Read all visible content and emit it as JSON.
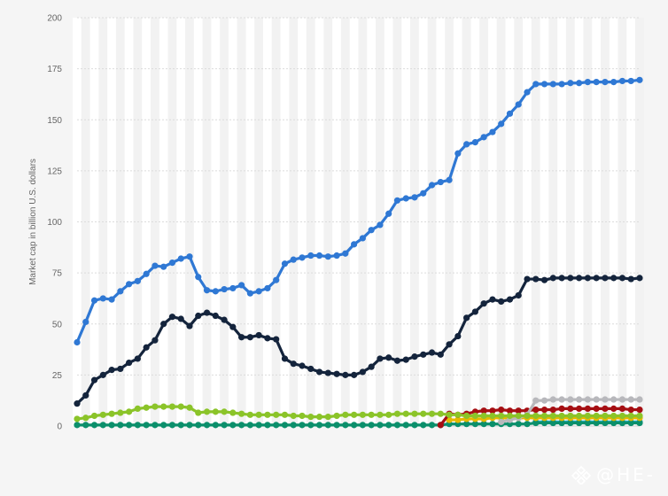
{
  "chart_data": {
    "type": "line",
    "title": "",
    "xlabel": "",
    "ylabel": "Market cap in billion U.S. dollars",
    "ylim": [
      0,
      200
    ],
    "yticks": [
      0,
      25,
      50,
      75,
      100,
      125,
      150,
      175,
      200
    ],
    "grid": true,
    "legend": "none",
    "series": [
      {
        "color": "#2f78d4",
        "values": [
          41,
          51,
          61.5,
          62.5,
          62,
          66,
          69.5,
          71,
          74.5,
          78.5,
          78,
          80,
          82,
          83,
          73,
          66.5,
          66,
          67,
          67.5,
          69,
          65,
          66,
          67.5,
          71.5,
          79.5,
          81.5,
          82.5,
          83.5,
          83.5,
          83,
          83.5,
          84.5,
          89,
          92,
          96,
          98.5,
          104,
          110.5,
          111.5,
          112,
          114,
          118,
          119.5,
          120.5,
          133.5,
          138,
          139,
          141.5,
          144,
          148,
          153,
          157.5,
          163.5,
          167.5,
          167.5,
          167.5,
          167.5,
          168,
          168,
          168.5,
          168.5,
          168.5,
          168.5,
          169,
          169,
          169.5
        ]
      },
      {
        "color": "#14243c",
        "values": [
          11,
          15,
          22.5,
          25,
          27.5,
          28,
          31,
          33,
          38.5,
          42,
          50,
          53.5,
          52.5,
          49,
          54,
          55.5,
          54,
          52,
          48.5,
          43.5,
          43.5,
          44.5,
          43,
          42.5,
          33,
          30.5,
          29.5,
          28,
          26.5,
          26,
          25.5,
          25,
          25,
          26.5,
          29,
          33,
          33.5,
          32,
          32.5,
          34,
          35,
          36,
          35,
          40,
          44,
          53,
          56,
          60,
          62,
          61,
          62,
          64,
          72,
          72,
          71.5,
          72.5,
          72.5,
          72.5,
          72.5,
          72.5,
          72.5,
          72.5,
          72.5,
          72.5,
          72,
          72.5
        ]
      },
      {
        "color": "#8bc429",
        "values": [
          3.5,
          4,
          5,
          5.5,
          6,
          6.5,
          7,
          8.5,
          9,
          9.5,
          9.5,
          9.5,
          9.5,
          9,
          6.5,
          7,
          7,
          7,
          6.5,
          6,
          5.5,
          5.5,
          5.5,
          5.5,
          5.5,
          5,
          5,
          4.5,
          4.5,
          4.5,
          5,
          5.5,
          5.5,
          5.5,
          5.5,
          5.5,
          5.5,
          6,
          6,
          6,
          6,
          6,
          6,
          5.5,
          5.5,
          5,
          5,
          5,
          5,
          5,
          5,
          5,
          5,
          5,
          5,
          5,
          5,
          5,
          5,
          5,
          5,
          5,
          5,
          5,
          5,
          5
        ]
      },
      {
        "color": "#b8b8bc",
        "values": [
          null,
          null,
          null,
          null,
          null,
          null,
          null,
          null,
          null,
          null,
          null,
          null,
          null,
          null,
          null,
          null,
          null,
          null,
          null,
          null,
          null,
          null,
          null,
          null,
          null,
          null,
          null,
          null,
          null,
          null,
          null,
          null,
          null,
          null,
          null,
          null,
          null,
          null,
          null,
          null,
          null,
          null,
          null,
          null,
          null,
          null,
          null,
          null,
          null,
          2,
          3,
          4,
          5.5,
          12.5,
          12.5,
          13,
          13,
          13,
          13,
          13,
          13,
          13,
          13,
          13,
          13,
          13
        ]
      },
      {
        "color": "#a50e12",
        "values": [
          null,
          null,
          null,
          null,
          null,
          null,
          null,
          null,
          null,
          null,
          null,
          null,
          null,
          null,
          null,
          null,
          null,
          null,
          null,
          null,
          null,
          null,
          null,
          null,
          null,
          null,
          null,
          null,
          null,
          null,
          null,
          null,
          null,
          null,
          null,
          null,
          null,
          null,
          null,
          null,
          null,
          null,
          0.5,
          6,
          5.5,
          6,
          7,
          7.5,
          7.5,
          8,
          7.5,
          7.5,
          7.5,
          8,
          8,
          8,
          8.5,
          8.5,
          8.5,
          8.5,
          8.5,
          8.5,
          8.5,
          8.5,
          8,
          8
        ]
      },
      {
        "color": "#e6b800",
        "values": [
          null,
          null,
          null,
          null,
          null,
          null,
          null,
          null,
          null,
          null,
          null,
          null,
          null,
          null,
          null,
          null,
          null,
          null,
          null,
          null,
          null,
          null,
          null,
          null,
          null,
          null,
          null,
          null,
          null,
          null,
          null,
          null,
          null,
          null,
          null,
          null,
          null,
          null,
          null,
          null,
          null,
          null,
          null,
          3,
          3,
          3.5,
          3.5,
          3.5,
          4,
          4,
          4,
          4,
          4,
          4,
          4,
          4,
          4,
          4,
          4,
          4,
          4,
          4,
          4,
          4,
          4,
          4
        ]
      },
      {
        "color": "#0b8f6b",
        "values": [
          0.5,
          0.5,
          0.5,
          0.5,
          0.5,
          0.5,
          0.5,
          0.5,
          0.5,
          0.5,
          0.5,
          0.5,
          0.5,
          0.5,
          0.5,
          0.5,
          0.5,
          0.5,
          0.5,
          0.5,
          0.5,
          0.5,
          0.5,
          0.5,
          0.5,
          0.5,
          0.5,
          0.5,
          0.5,
          0.5,
          0.5,
          0.5,
          0.5,
          0.5,
          0.5,
          0.5,
          0.5,
          0.5,
          0.5,
          0.5,
          0.5,
          0.5,
          0.5,
          1,
          1,
          1,
          1,
          1,
          1,
          1,
          1,
          1,
          1,
          1.5,
          1.5,
          1.5,
          1.5,
          1.5,
          1.5,
          1.5,
          1.5,
          1.5,
          1.5,
          1.5,
          1.5,
          1.5
        ]
      },
      {
        "color": "#1fa8b8",
        "values": [
          null,
          null,
          null,
          null,
          null,
          null,
          null,
          null,
          null,
          null,
          null,
          null,
          null,
          null,
          null,
          null,
          null,
          null,
          null,
          null,
          null,
          null,
          null,
          null,
          null,
          null,
          null,
          null,
          null,
          null,
          null,
          null,
          null,
          null,
          null,
          null,
          null,
          null,
          null,
          null,
          null,
          null,
          null,
          null,
          null,
          null,
          null,
          null,
          null,
          null,
          null,
          null,
          null,
          2,
          2,
          2,
          2,
          2,
          2,
          2,
          2,
          2,
          2,
          2,
          2,
          2
        ]
      }
    ]
  },
  "watermark": {
    "text": "@HE-",
    "icon": "diamond-logo-icon"
  }
}
